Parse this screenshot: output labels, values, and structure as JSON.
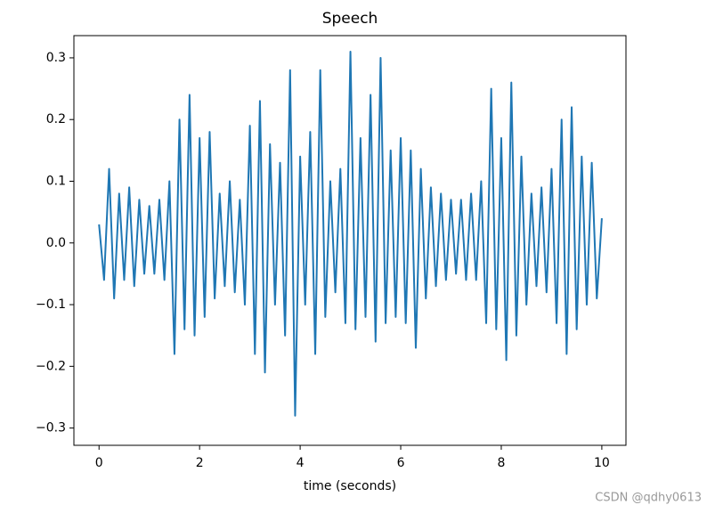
{
  "chart_data": {
    "type": "line",
    "title": "Speech",
    "xlabel": "time (seconds)",
    "x": [
      0,
      0.1,
      0.2,
      0.3,
      0.4,
      0.5,
      0.6,
      0.7,
      0.8,
      0.9,
      1,
      1.1,
      1.2,
      1.3,
      1.4,
      1.5,
      1.6,
      1.7,
      1.8,
      1.9,
      2,
      2.1,
      2.2,
      2.3,
      2.4,
      2.5,
      2.6,
      2.7,
      2.8,
      2.9,
      3,
      3.1,
      3.2,
      3.3,
      3.4,
      3.5,
      3.6,
      3.7,
      3.8,
      3.9,
      4,
      4.1,
      4.2,
      4.3,
      4.4,
      4.5,
      4.6,
      4.7,
      4.8,
      4.9,
      5,
      5.1,
      5.2,
      5.3,
      5.4,
      5.5,
      5.6,
      5.7,
      5.8,
      5.9,
      6,
      6.1,
      6.2,
      6.3,
      6.4,
      6.5,
      6.6,
      6.7,
      6.8,
      6.9,
      7,
      7.1,
      7.2,
      7.3,
      7.4,
      7.5,
      7.6,
      7.7,
      7.8,
      7.9,
      8,
      8.1,
      8.2,
      8.3,
      8.4,
      8.5,
      8.6,
      8.7,
      8.8,
      8.9,
      9,
      9.1,
      9.2,
      9.3,
      9.4,
      9.5,
      9.6,
      9.7,
      9.8,
      9.9,
      10
    ],
    "series": [
      {
        "color": "#1f77b4",
        "values": [
          0.03,
          -0.06,
          0.12,
          -0.09,
          0.08,
          -0.06,
          0.09,
          -0.07,
          0.07,
          -0.05,
          0.06,
          -0.05,
          0.07,
          -0.06,
          0.1,
          -0.18,
          0.2,
          -0.14,
          0.24,
          -0.15,
          0.17,
          -0.12,
          0.18,
          -0.09,
          0.08,
          -0.07,
          0.1,
          -0.08,
          0.07,
          -0.1,
          0.19,
          -0.18,
          0.23,
          -0.21,
          0.16,
          -0.1,
          0.13,
          -0.15,
          0.28,
          -0.28,
          0.14,
          -0.1,
          0.18,
          -0.18,
          0.28,
          -0.12,
          0.1,
          -0.08,
          0.12,
          -0.13,
          0.31,
          -0.14,
          0.17,
          -0.12,
          0.24,
          -0.16,
          0.3,
          -0.13,
          0.15,
          -0.12,
          0.17,
          -0.13,
          0.15,
          -0.17,
          0.12,
          -0.09,
          0.09,
          -0.07,
          0.08,
          -0.06,
          0.07,
          -0.05,
          0.07,
          -0.06,
          0.08,
          -0.06,
          0.1,
          -0.13,
          0.25,
          -0.14,
          0.17,
          -0.19,
          0.26,
          -0.15,
          0.14,
          -0.1,
          0.08,
          -0.07,
          0.09,
          -0.08,
          0.12,
          -0.13,
          0.2,
          -0.18,
          0.22,
          -0.14,
          0.14,
          -0.1,
          0.13,
          -0.09,
          0.04
        ]
      }
    ],
    "xlim": [
      -0.5,
      10.48
    ],
    "ylim": [
      -0.328,
      0.336
    ],
    "xticks": [
      0,
      2,
      4,
      6,
      8,
      10
    ],
    "yticks": [
      {
        "value": -0.3,
        "label": "−0.3"
      },
      {
        "value": -0.2,
        "label": "−0.2"
      },
      {
        "value": -0.1,
        "label": "−0.1"
      },
      {
        "value": 0,
        "label": "0.0"
      },
      0.1,
      0.2,
      0.3
    ]
  },
  "watermark": "CSDN @qdhy0613"
}
